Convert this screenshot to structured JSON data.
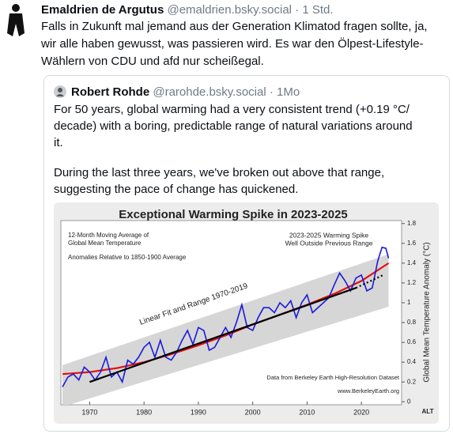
{
  "post": {
    "author": "Emaldrien de Argutus",
    "handle": "@emaldrien.bsky.social · 1 Std.",
    "lines": [
      "Falls in Zukunft mal jemand aus der Generation Klimatod fragen sollte, ja,",
      "wir alle haben gewusst, was passieren wird. Es war den Ölpest-Lifestyle-",
      "Wählern von CDU und afd nur scheißegal."
    ]
  },
  "quote": {
    "author": "Robert Rohde",
    "handle": "@rarohde.bsky.social · 1Mo",
    "lines": [
      "For 50 years, global warming had a very consistent trend (+0.19 °C/",
      "decade) with a boring, predictable range of natural variations around",
      "it.",
      "During the last three years, we've broken out above that range,",
      "suggesting the pace of change has quickened."
    ]
  },
  "chart_data": {
    "type": "line",
    "title": "Exceptional Warming Spike in 2023-2025",
    "annotations": [
      "12-Month Moving Average of",
      "Global Mean Temperature",
      "Anomalies Relative to 1850-1900 Average",
      "2023-2025 Warming Spike",
      "Well Outside Previous Range",
      "Linear Fit and Range 1970-2019",
      "Data from Berkeley Earth High-Resolution Dataset",
      "www.BerkeleyEarth.org",
      "ALT"
    ],
    "y_label": "Global Mean Temperature Anomaly (°C)",
    "xlim": [
      1964.7,
      2027.4
    ],
    "xticks": [
      1970,
      1980,
      1990,
      2000,
      2010,
      2020
    ],
    "ylim": [
      -0.03,
      1.83
    ],
    "yticks": [
      0,
      0.2,
      0.4,
      0.6,
      0.8,
      1,
      1.2,
      1.4,
      1.6,
      1.8
    ],
    "band": {
      "x": [
        1965,
        2025
      ],
      "lower": [
        -0.05,
        0.96
      ],
      "upper": [
        0.37,
        1.49
      ],
      "color": "#d6d6d6"
    },
    "series": [
      {
        "color": "#1a1adb",
        "style": "solid",
        "x": [
          1965,
          1966,
          1967,
          1968,
          1969,
          1970,
          1971,
          1972,
          1973,
          1974,
          1975,
          1976,
          1977,
          1978,
          1979,
          1980,
          1981,
          1982,
          1983,
          1984,
          1985,
          1986,
          1987,
          1988,
          1989,
          1990,
          1991,
          1992,
          1993,
          1994,
          1995,
          1996,
          1997,
          1998,
          1999,
          2000,
          2001,
          2002,
          2003,
          2004,
          2005,
          2006,
          2007,
          2008,
          2009,
          2010,
          2011,
          2012,
          2013,
          2014,
          2015,
          2016,
          2017,
          2018,
          2019,
          2020,
          2021,
          2022,
          2023,
          2023.8,
          2024.5,
          2025
        ],
        "values": [
          0.15,
          0.25,
          0.28,
          0.22,
          0.35,
          0.3,
          0.22,
          0.3,
          0.45,
          0.25,
          0.3,
          0.2,
          0.42,
          0.38,
          0.45,
          0.55,
          0.6,
          0.45,
          0.62,
          0.45,
          0.42,
          0.5,
          0.62,
          0.72,
          0.58,
          0.75,
          0.72,
          0.52,
          0.55,
          0.65,
          0.75,
          0.65,
          0.8,
          0.98,
          0.75,
          0.72,
          0.85,
          0.95,
          0.95,
          0.9,
          1.0,
          0.95,
          1.02,
          0.85,
          1.0,
          1.08,
          0.9,
          0.95,
          1.0,
          1.05,
          1.18,
          1.3,
          1.22,
          1.12,
          1.25,
          1.28,
          1.12,
          1.15,
          1.42,
          1.56,
          1.55,
          1.45
        ]
      },
      {
        "color": "#e01010",
        "style": "solid",
        "x": [
          1965,
          1970,
          1975,
          1980,
          1985,
          1990,
          1995,
          2000,
          2005,
          2010,
          2015,
          2020,
          2025
        ],
        "values": [
          0.28,
          0.3,
          0.34,
          0.4,
          0.48,
          0.57,
          0.67,
          0.78,
          0.88,
          0.98,
          1.09,
          1.22,
          1.4
        ]
      },
      {
        "color": "#000000",
        "style": "solid",
        "x": [
          1970,
          2019
        ],
        "values": [
          0.2,
          1.15
        ]
      },
      {
        "color": "#000000",
        "style": "dotted",
        "x": [
          2019,
          2024
        ],
        "values": [
          1.15,
          1.28
        ]
      }
    ]
  }
}
